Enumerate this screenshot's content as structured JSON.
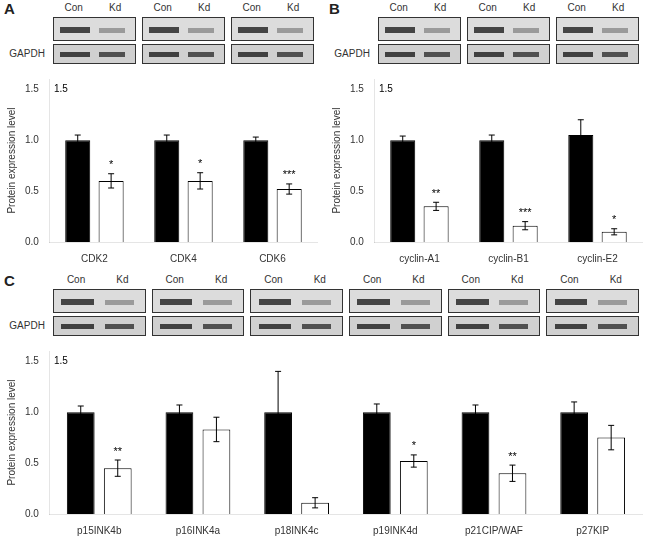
{
  "chart_data": [
    {
      "type": "bar",
      "title": "A",
      "categories": [
        "CDK2",
        "CDK4",
        "CDK6"
      ],
      "series": [
        {
          "name": "Con",
          "color": "#000000",
          "values": [
            1.0,
            1.0,
            1.0
          ],
          "errors": [
            0.05,
            0.05,
            0.03
          ]
        },
        {
          "name": "Kd",
          "color": "#ffffff",
          "values": [
            0.6,
            0.6,
            0.52
          ],
          "errors": [
            0.07,
            0.08,
            0.05
          ]
        }
      ],
      "ylabel": "Protein expression level",
      "ylim": [
        0,
        1.6
      ],
      "yticks": [
        {
          "value": 0,
          "label": "0.0"
        },
        0.5,
        {
          "value": 1,
          "label": "1.0"
        },
        1.5
      ],
      "grid": false,
      "annotations": [
        {
          "category": "CDK2",
          "series": "Kd",
          "text": "*"
        },
        {
          "category": "CDK4",
          "series": "Kd",
          "text": "*"
        },
        {
          "category": "CDK6",
          "series": "Kd",
          "text": "***"
        },
        {
          "text": "1.5",
          "y": 1.5
        },
        {
          "text": "GAPDH"
        }
      ]
    },
    {
      "type": "bar",
      "title": "B",
      "categories": [
        "cyclin-A1",
        "cyclin-B1",
        "cyclin-E2"
      ],
      "series": [
        {
          "name": "Con",
          "color": "#000000",
          "values": [
            1.0,
            1.0,
            1.05
          ],
          "errors": [
            0.04,
            0.05,
            0.15
          ]
        },
        {
          "name": "Kd",
          "color": "#ffffff",
          "values": [
            0.35,
            0.16,
            0.1
          ],
          "errors": [
            0.04,
            0.04,
            0.03
          ]
        }
      ],
      "ylabel": "Protein expression level",
      "ylim": [
        0,
        1.6
      ],
      "yticks": [
        {
          "value": 0,
          "label": "0.0"
        },
        0.5,
        {
          "value": 1,
          "label": "1.0"
        },
        1.5
      ],
      "grid": false,
      "annotations": [
        {
          "category": "cyclin-A1",
          "series": "Kd",
          "text": "**"
        },
        {
          "category": "cyclin-B1",
          "series": "Kd",
          "text": "***"
        },
        {
          "category": "cyclin-E2",
          "series": "Kd",
          "text": "*"
        },
        {
          "text": "1.5",
          "y": 1.5
        },
        {
          "text": "GAPDH"
        }
      ]
    },
    {
      "type": "bar",
      "title": "C",
      "categories": [
        "p15INK4b",
        "p16INK4a",
        "p18INK4c",
        "p19INK4d",
        "p21CIP/WAF",
        "p27KIP"
      ],
      "series": [
        {
          "name": "Con",
          "color": "#000000",
          "values": [
            1.0,
            1.0,
            1.0,
            1.0,
            1.0,
            1.0
          ],
          "errors": [
            0.06,
            0.07,
            0.4,
            0.08,
            0.07,
            0.1
          ]
        },
        {
          "name": "Kd",
          "color": "#ffffff",
          "values": [
            0.45,
            0.83,
            0.11,
            0.52,
            0.4,
            0.75
          ],
          "errors": [
            0.08,
            0.12,
            0.05,
            0.06,
            0.08,
            0.12
          ]
        }
      ],
      "ylabel": "Protein expression level",
      "ylim": [
        0,
        1.6
      ],
      "yticks": [
        {
          "value": 0,
          "label": "0.0"
        },
        0.5,
        {
          "value": 1,
          "label": "1.0"
        },
        1.5
      ],
      "grid": false,
      "annotations": [
        {
          "category": "p15INK4b",
          "series": "Kd",
          "text": "**"
        },
        {
          "category": "p19INK4d",
          "series": "Kd",
          "text": "*"
        },
        {
          "category": "p21CIP/WAF",
          "series": "Kd",
          "text": "**"
        },
        {
          "text": "1.5",
          "y": 1.5
        },
        {
          "text": "GAPDH"
        }
      ]
    }
  ]
}
